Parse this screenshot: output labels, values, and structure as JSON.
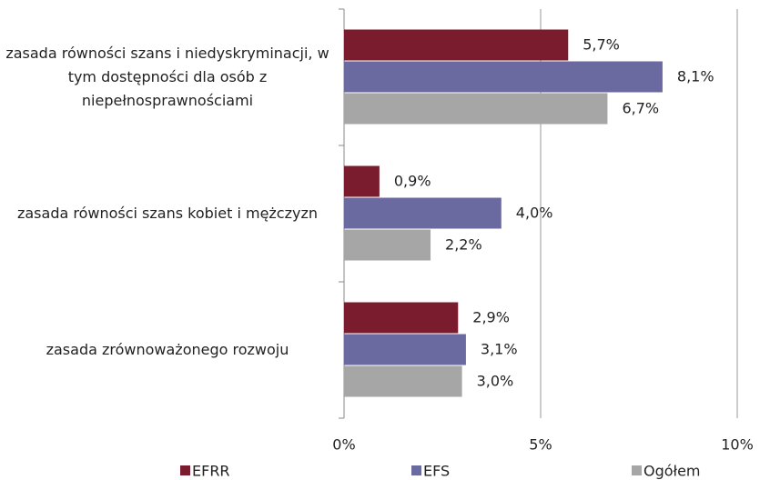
{
  "chart_data": {
    "type": "barh",
    "categories": [
      "zasada równości szans i niedyskryminacji, w tym dostępności dla osób z niepełnosprawnościami",
      "zasada równości szans kobiet i mężczyzn",
      "zasada zrównoważonego rozwoju"
    ],
    "series": [
      {
        "name": "EFRR",
        "color": "#7b1c2e",
        "values": [
          5.7,
          0.9,
          2.9
        ],
        "value_labels": [
          "5,7%",
          "0,9%",
          "2,9%"
        ]
      },
      {
        "name": "EFS",
        "color": "#6b6aa0",
        "values": [
          8.1,
          4.0,
          3.1
        ],
        "value_labels": [
          "8,1%",
          "4,0%",
          "3,1%"
        ]
      },
      {
        "name": "Ogółem",
        "color": "#a6a6a6",
        "values": [
          6.7,
          2.2,
          3.0
        ],
        "value_labels": [
          "6,7%",
          "2,2%",
          "3,0%"
        ]
      }
    ],
    "xlim": [
      0,
      10
    ],
    "xticks": [
      {
        "value": 0,
        "label": "0%"
      },
      {
        "value": 5,
        "label": "5%"
      },
      {
        "value": 10,
        "label": "10%"
      }
    ],
    "grid": true,
    "legend": "bottom"
  }
}
